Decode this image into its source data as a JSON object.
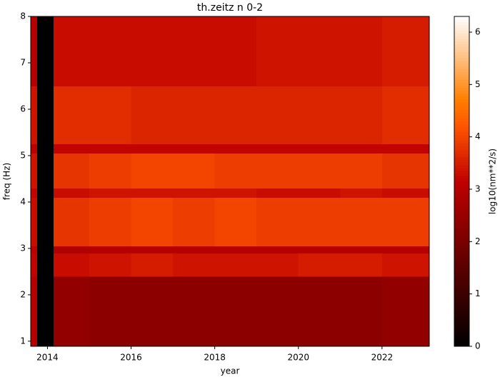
{
  "chart_data": {
    "type": "heatmap",
    "title": "th.zeitz n 0-2",
    "xlabel": "year",
    "ylabel": "freq (Hz)",
    "colormap": "gist_heat",
    "x_edges": [
      2013.6,
      2013.75,
      2014.15,
      2015,
      2016,
      2017,
      2018,
      2019,
      2020,
      2021,
      2022,
      2023.13
    ],
    "y_edges": [
      0.89,
      2.4,
      2.9,
      3.05,
      4.1,
      4.3,
      5.05,
      5.25,
      6.5,
      8
    ],
    "values": [
      [
        3.0,
        0,
        2.4,
        2.3,
        2.3,
        2.3,
        2.3,
        2.3,
        2.3,
        2.3,
        2.4
      ],
      [
        3.2,
        0,
        3.3,
        3.4,
        3.5,
        3.4,
        3.4,
        3.4,
        3.5,
        3.5,
        3.4
      ],
      [
        3.1,
        0,
        2.9,
        3.0,
        3.0,
        3.0,
        3.0,
        3.0,
        3.0,
        3.0,
        3.0
      ],
      [
        3.3,
        0,
        3.8,
        3.9,
        4.0,
        3.9,
        4.0,
        3.9,
        3.9,
        3.9,
        3.9
      ],
      [
        3.2,
        0,
        3.3,
        3.4,
        3.4,
        3.4,
        3.4,
        3.3,
        3.3,
        3.4,
        3.3
      ],
      [
        3.4,
        0,
        3.8,
        3.9,
        4.0,
        4.0,
        3.9,
        3.9,
        3.9,
        3.9,
        3.8
      ],
      [
        3.1,
        0,
        3.2,
        3.2,
        3.2,
        3.2,
        3.2,
        3.2,
        3.2,
        3.2,
        3.2
      ],
      [
        3.4,
        0,
        3.7,
        3.7,
        3.6,
        3.6,
        3.6,
        3.6,
        3.6,
        3.6,
        3.7
      ],
      [
        3.0,
        0,
        3.3,
        3.3,
        3.3,
        3.3,
        3.3,
        3.4,
        3.4,
        3.4,
        3.5
      ]
    ],
    "xlim": [
      2013.6,
      2023.13
    ],
    "xticks": [
      2014,
      2016,
      2018,
      2020,
      2022
    ],
    "ylim": [
      0.89,
      8
    ],
    "yticks": [
      1,
      2,
      3,
      4,
      5,
      6,
      7,
      8
    ],
    "colorbar": {
      "label": "log10(nm**2/s)",
      "lim": [
        0,
        6.3
      ],
      "ticks": [
        0,
        1,
        2,
        3,
        4,
        5,
        6
      ]
    }
  }
}
